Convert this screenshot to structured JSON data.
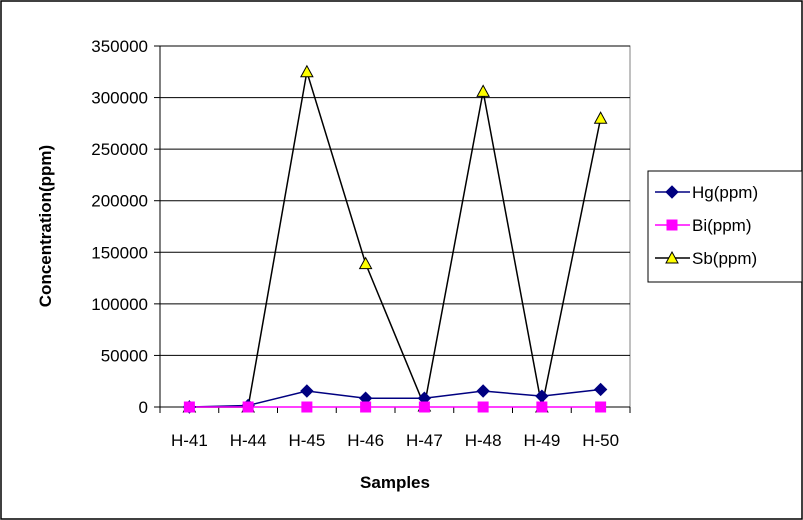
{
  "chart_data": {
    "type": "line",
    "title": "",
    "xlabel": "Samples",
    "ylabel": "Concentration(ppm)",
    "categories": [
      "H-41",
      "H-44",
      "H-45",
      "H-46",
      "H-47",
      "H-48",
      "H-49",
      "H-50"
    ],
    "ylim": [
      0,
      350000
    ],
    "yticks": [
      0,
      50000,
      100000,
      150000,
      200000,
      250000,
      300000,
      350000
    ],
    "grid": "horizontal",
    "legend_position": "right",
    "series": [
      {
        "name": "Hg(ppm)",
        "marker": "diamond",
        "color": "#000080",
        "marker_fill": "#000080",
        "values": [
          0,
          1500,
          15500,
          8500,
          8500,
          15500,
          10500,
          17000
        ]
      },
      {
        "name": "Bi(ppm)",
        "marker": "square",
        "color": "#FF00FF",
        "marker_fill": "#FF00FF",
        "values": [
          0,
          0,
          0,
          0,
          0,
          0,
          0,
          0
        ]
      },
      {
        "name": "Sb(ppm)",
        "marker": "triangle",
        "color": "#000000",
        "marker_fill": "#FFFF00",
        "values": [
          0,
          0,
          325000,
          139000,
          1000,
          306000,
          0,
          280000
        ]
      }
    ]
  }
}
